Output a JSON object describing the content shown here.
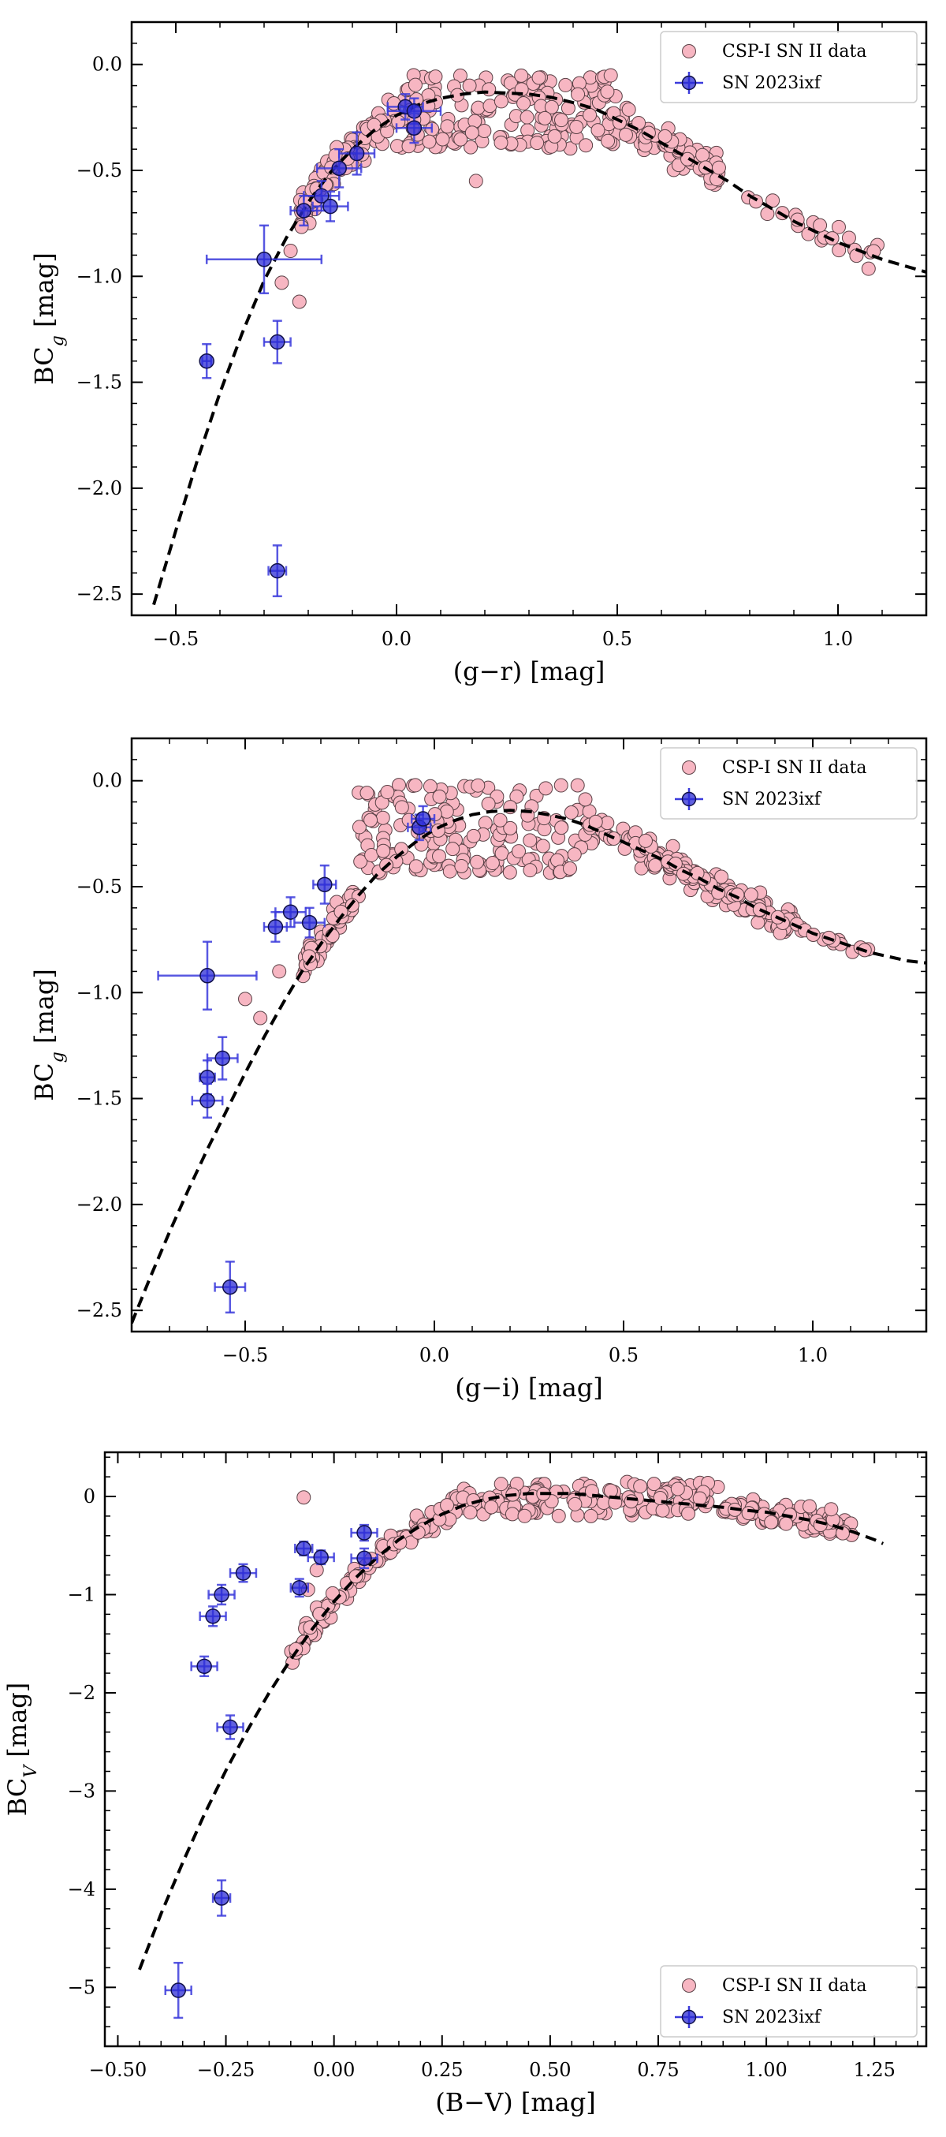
{
  "chart_data": [
    {
      "type": "scatter",
      "xlabel": "(g−r) [mag]",
      "ylabel_main": "BC",
      "ylabel_sub": "g",
      "ylabel_tail": " [mag]",
      "xlim": [
        -0.6,
        1.2
      ],
      "ylim": [
        -2.6,
        0.2
      ],
      "xticks": [
        -0.5,
        0.0,
        0.5,
        1.0
      ],
      "xtick_labels": [
        "−0.5",
        "0.0",
        "0.5",
        "1.0"
      ],
      "yticks": [
        0.0,
        -0.5,
        -1.0,
        -1.5,
        -2.0,
        -2.5
      ],
      "ytick_labels": [
        "0.0",
        "−0.5",
        "−1.0",
        "−1.5",
        "−2.0",
        "−2.5"
      ],
      "legend_position": "upper-right",
      "csp_label": "CSP-I SN II data",
      "sn_label": "SN 2023ixf",
      "sn_points": [
        [
          -0.43,
          -1.4,
          0.01,
          0.08
        ],
        [
          -0.3,
          -0.92,
          0.13,
          0.16
        ],
        [
          -0.27,
          -1.31,
          0.03,
          0.1
        ],
        [
          -0.27,
          -2.39,
          0.02,
          0.12
        ],
        [
          -0.21,
          -0.69,
          0.03,
          0.07
        ],
        [
          -0.17,
          -0.62,
          0.04,
          0.07
        ],
        [
          -0.15,
          -0.67,
          0.04,
          0.07
        ],
        [
          -0.13,
          -0.49,
          0.05,
          0.09
        ],
        [
          -0.09,
          -0.42,
          0.04,
          0.1
        ],
        [
          0.02,
          -0.2,
          0.04,
          0.06
        ],
        [
          0.04,
          -0.22,
          0.06,
          0.06
        ],
        [
          0.04,
          -0.3,
          0.04,
          0.07
        ]
      ],
      "fit_curve": [
        [
          -0.55,
          -2.55
        ],
        [
          -0.5,
          -2.2
        ],
        [
          -0.45,
          -1.86
        ],
        [
          -0.4,
          -1.55
        ],
        [
          -0.35,
          -1.27
        ],
        [
          -0.3,
          -1.02
        ],
        [
          -0.25,
          -0.82
        ],
        [
          -0.2,
          -0.65
        ],
        [
          -0.15,
          -0.51
        ],
        [
          -0.1,
          -0.4
        ],
        [
          -0.05,
          -0.31
        ],
        [
          0.0,
          -0.24
        ],
        [
          0.05,
          -0.19
        ],
        [
          0.1,
          -0.16
        ],
        [
          0.15,
          -0.14
        ],
        [
          0.2,
          -0.13
        ],
        [
          0.25,
          -0.135
        ],
        [
          0.3,
          -0.14
        ],
        [
          0.35,
          -0.155
        ],
        [
          0.4,
          -0.18
        ],
        [
          0.45,
          -0.21
        ],
        [
          0.5,
          -0.26
        ],
        [
          0.55,
          -0.31
        ],
        [
          0.6,
          -0.37
        ],
        [
          0.65,
          -0.43
        ],
        [
          0.7,
          -0.49
        ],
        [
          0.75,
          -0.55
        ],
        [
          0.8,
          -0.62
        ],
        [
          0.85,
          -0.68
        ],
        [
          0.9,
          -0.74
        ],
        [
          0.95,
          -0.79
        ],
        [
          1.0,
          -0.84
        ],
        [
          1.05,
          -0.88
        ],
        [
          1.1,
          -0.92
        ],
        [
          1.15,
          -0.95
        ],
        [
          1.2,
          -0.98
        ]
      ]
    },
    {
      "type": "scatter",
      "xlabel": "(g−i) [mag]",
      "ylabel_main": "BC",
      "ylabel_sub": "g",
      "ylabel_tail": " [mag]",
      "xlim": [
        -0.8,
        1.3
      ],
      "ylim": [
        -2.6,
        0.2
      ],
      "xticks": [
        -0.5,
        0.0,
        0.5,
        1.0
      ],
      "xtick_labels": [
        "−0.5",
        "0.0",
        "0.5",
        "1.0"
      ],
      "yticks": [
        0.0,
        -0.5,
        -1.0,
        -1.5,
        -2.0,
        -2.5
      ],
      "ytick_labels": [
        "0.0",
        "−0.5",
        "−1.0",
        "−1.5",
        "−2.0",
        "−2.5"
      ],
      "legend_position": "upper-right",
      "csp_label": "CSP-I SN II data",
      "sn_label": "SN 2023ixf",
      "sn_points": [
        [
          -0.6,
          -0.92,
          0.13,
          0.16
        ],
        [
          -0.6,
          -1.4,
          0.02,
          0.08
        ],
        [
          -0.6,
          -1.51,
          0.04,
          0.08
        ],
        [
          -0.56,
          -1.31,
          0.04,
          0.1
        ],
        [
          -0.54,
          -2.39,
          0.04,
          0.12
        ],
        [
          -0.42,
          -0.69,
          0.03,
          0.07
        ],
        [
          -0.38,
          -0.62,
          0.04,
          0.07
        ],
        [
          -0.33,
          -0.67,
          0.04,
          0.07
        ],
        [
          -0.29,
          -0.49,
          0.03,
          0.09
        ],
        [
          -0.04,
          -0.22,
          0.03,
          0.06
        ],
        [
          -0.03,
          -0.18,
          0.03,
          0.06
        ]
      ],
      "fit_curve": [
        [
          -0.8,
          -2.56
        ],
        [
          -0.75,
          -2.34
        ],
        [
          -0.7,
          -2.13
        ],
        [
          -0.65,
          -1.93
        ],
        [
          -0.6,
          -1.74
        ],
        [
          -0.55,
          -1.56
        ],
        [
          -0.5,
          -1.38
        ],
        [
          -0.45,
          -1.21
        ],
        [
          -0.4,
          -1.05
        ],
        [
          -0.35,
          -0.9
        ],
        [
          -0.3,
          -0.77
        ],
        [
          -0.25,
          -0.65
        ],
        [
          -0.2,
          -0.54
        ],
        [
          -0.15,
          -0.44
        ],
        [
          -0.1,
          -0.36
        ],
        [
          -0.05,
          -0.29
        ],
        [
          0.0,
          -0.23
        ],
        [
          0.05,
          -0.19
        ],
        [
          0.1,
          -0.16
        ],
        [
          0.15,
          -0.145
        ],
        [
          0.2,
          -0.14
        ],
        [
          0.25,
          -0.145
        ],
        [
          0.3,
          -0.16
        ],
        [
          0.35,
          -0.18
        ],
        [
          0.4,
          -0.21
        ],
        [
          0.45,
          -0.25
        ],
        [
          0.5,
          -0.29
        ],
        [
          0.55,
          -0.33
        ],
        [
          0.6,
          -0.37
        ],
        [
          0.65,
          -0.42
        ],
        [
          0.7,
          -0.46
        ],
        [
          0.75,
          -0.51
        ],
        [
          0.8,
          -0.55
        ],
        [
          0.85,
          -0.6
        ],
        [
          0.9,
          -0.64
        ],
        [
          0.95,
          -0.68
        ],
        [
          1.0,
          -0.72
        ],
        [
          1.05,
          -0.75
        ],
        [
          1.1,
          -0.78
        ],
        [
          1.15,
          -0.81
        ],
        [
          1.2,
          -0.83
        ],
        [
          1.25,
          -0.85
        ],
        [
          1.3,
          -0.86
        ]
      ]
    },
    {
      "type": "scatter",
      "xlabel": "(B−V) [mag]",
      "ylabel_main": "BC",
      "ylabel_sub": "V",
      "ylabel_tail": " [mag]",
      "xlim": [
        -0.53,
        1.37
      ],
      "ylim": [
        -5.6,
        0.45
      ],
      "xticks": [
        -0.5,
        -0.25,
        0.0,
        0.25,
        0.5,
        0.75,
        1.0,
        1.25
      ],
      "xtick_labels": [
        "−0.50",
        "−0.25",
        "0.00",
        "0.25",
        "0.50",
        "0.75",
        "1.00",
        "1.25"
      ],
      "yticks": [
        0,
        -1,
        -2,
        -3,
        -4,
        -5
      ],
      "ytick_labels": [
        "0",
        "−1",
        "−2",
        "−3",
        "−4",
        "−5"
      ],
      "legend_position": "lower-right",
      "csp_label": "CSP-I SN II data",
      "sn_label": "SN 2023ixf",
      "sn_points": [
        [
          -0.36,
          -5.03,
          0.03,
          0.28
        ],
        [
          -0.3,
          -1.73,
          0.03,
          0.1
        ],
        [
          -0.28,
          -1.22,
          0.03,
          0.1
        ],
        [
          -0.26,
          -1.0,
          0.03,
          0.1
        ],
        [
          -0.26,
          -4.09,
          0.02,
          0.18
        ],
        [
          -0.24,
          -2.35,
          0.03,
          0.12
        ],
        [
          -0.21,
          -0.78,
          0.03,
          0.09
        ],
        [
          -0.08,
          -0.93,
          0.02,
          0.09
        ],
        [
          -0.07,
          -0.53,
          0.02,
          0.07
        ],
        [
          -0.03,
          -0.62,
          0.03,
          0.07
        ],
        [
          0.07,
          -0.63,
          0.03,
          0.1
        ],
        [
          0.07,
          -0.37,
          0.03,
          0.08
        ]
      ],
      "fit_curve": [
        [
          -0.45,
          -4.82
        ],
        [
          -0.4,
          -4.25
        ],
        [
          -0.35,
          -3.73
        ],
        [
          -0.3,
          -3.24
        ],
        [
          -0.25,
          -2.79
        ],
        [
          -0.2,
          -2.38
        ],
        [
          -0.15,
          -2.0
        ],
        [
          -0.1,
          -1.66
        ],
        [
          -0.05,
          -1.35
        ],
        [
          0.0,
          -1.07
        ],
        [
          0.05,
          -0.83
        ],
        [
          0.1,
          -0.62
        ],
        [
          0.15,
          -0.44
        ],
        [
          0.2,
          -0.3
        ],
        [
          0.25,
          -0.18
        ],
        [
          0.3,
          -0.09
        ],
        [
          0.35,
          -0.03
        ],
        [
          0.4,
          0.01
        ],
        [
          0.45,
          0.03
        ],
        [
          0.5,
          0.03
        ],
        [
          0.55,
          0.03
        ],
        [
          0.6,
          0.01
        ],
        [
          0.65,
          -0.01
        ],
        [
          0.7,
          -0.03
        ],
        [
          0.75,
          -0.05
        ],
        [
          0.8,
          -0.07
        ],
        [
          0.85,
          -0.09
        ],
        [
          0.9,
          -0.11
        ],
        [
          0.95,
          -0.14
        ],
        [
          1.0,
          -0.16
        ],
        [
          1.05,
          -0.2
        ],
        [
          1.1,
          -0.24
        ],
        [
          1.15,
          -0.29
        ],
        [
          1.2,
          -0.36
        ],
        [
          1.25,
          -0.44
        ],
        [
          1.27,
          -0.48
        ]
      ]
    }
  ]
}
